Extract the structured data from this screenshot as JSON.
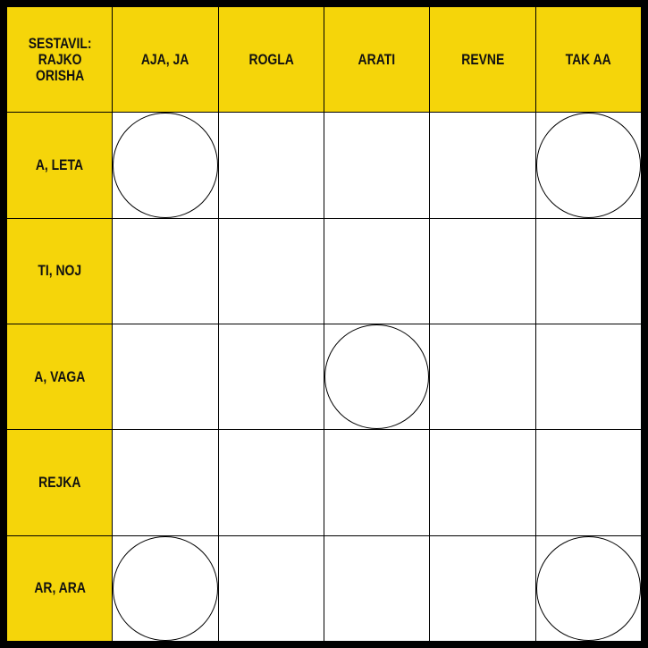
{
  "puzzle": {
    "author_clue": "SESTAVIL:\nRAJKO\nORISHA",
    "column_clues": [
      "AJA, JA",
      "ROGLA",
      "ARATI",
      "REVNE",
      "TAK AA"
    ],
    "row_clues": [
      "A, LETA",
      "TI, NOJ",
      "A, VAGA",
      "REJKA",
      "AR, ARA"
    ],
    "circled_cells": [
      [
        1,
        1
      ],
      [
        1,
        5
      ],
      [
        3,
        3
      ],
      [
        5,
        1
      ],
      [
        5,
        5
      ]
    ],
    "colors": {
      "clue_background": "#f5d50a",
      "border": "#000000",
      "answer_cell": "#ffffff"
    }
  }
}
